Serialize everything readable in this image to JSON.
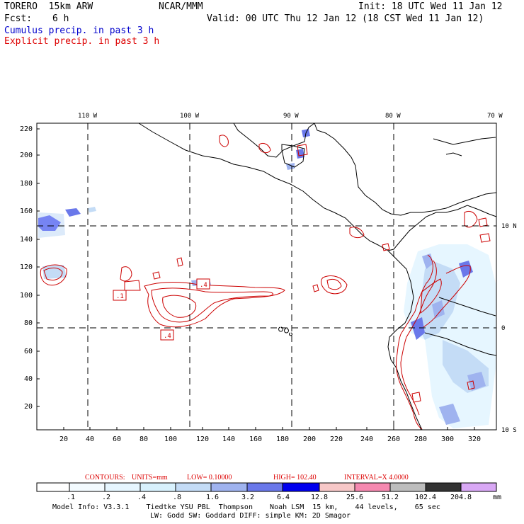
{
  "header": {
    "model": "TORERO  15km ARW",
    "center": "NCAR/MMM",
    "init": "Init: 18 UTC Wed 11 Jan 12",
    "fcst_label": "Fcst:",
    "fcst_value": "6 h",
    "valid": "Valid: 00 UTC Thu 12 Jan 12 (18 CST Wed 11 Jan 12)",
    "legend_cumulus": "Cumulus precip. in past 3 h",
    "legend_explicit": "Explicit precip. in past 3 h"
  },
  "colors": {
    "cumulus": "#0000cc",
    "explicit": "#dd0000",
    "contour": "#cc0000"
  },
  "map": {
    "lon_labels": [
      "110 W",
      "100 W",
      "90 W",
      "80 W",
      "70 W"
    ],
    "lat_labels": [
      "10 N",
      "0",
      "10 S"
    ],
    "y_ticks": [
      "220",
      "200",
      "180",
      "160",
      "140",
      "120",
      "100",
      "80",
      "60",
      "40",
      "20"
    ],
    "x_ticks": [
      "20",
      "40",
      "60",
      "80",
      "100",
      "120",
      "140",
      "160",
      "180",
      "200",
      "220",
      "240",
      "260",
      "280",
      "300",
      "320"
    ],
    "contour_labels": [
      ".1",
      ".4",
      ".4"
    ]
  },
  "contours_info": {
    "label": "CONTOURS:",
    "units": "UNITS=mm",
    "low": "LOW= 0.10000",
    "high": "HIGH= 102.40",
    "interval": "INTERVAL=X  4.0000"
  },
  "colorbar": {
    "values": [
      ".1",
      ".2",
      ".4",
      ".8",
      "1.6",
      "3.2",
      "6.4",
      "12.8",
      "25.6",
      "51.2",
      "102.4",
      "204.8"
    ],
    "unit": "mm",
    "colors": [
      "#ffffff",
      "#f3fbff",
      "#e6f6ff",
      "#d8f1fd",
      "#c4dcf6",
      "#9fb3ef",
      "#6a78ea",
      "#3b3cee",
      "#0000ee",
      "#f7c8c8",
      "#f589b0",
      "#bdbdbd",
      "#333333",
      "#d9a8f5"
    ]
  },
  "footer": {
    "line1": "Model Info: V3.3.1    Tiedtke YSU PBL  Thompson    Noah LSM  15 km,    44 levels,    65 sec",
    "line2": "LW: Godd SW: Goddard DIFF: simple KM: 2D Smagor"
  }
}
